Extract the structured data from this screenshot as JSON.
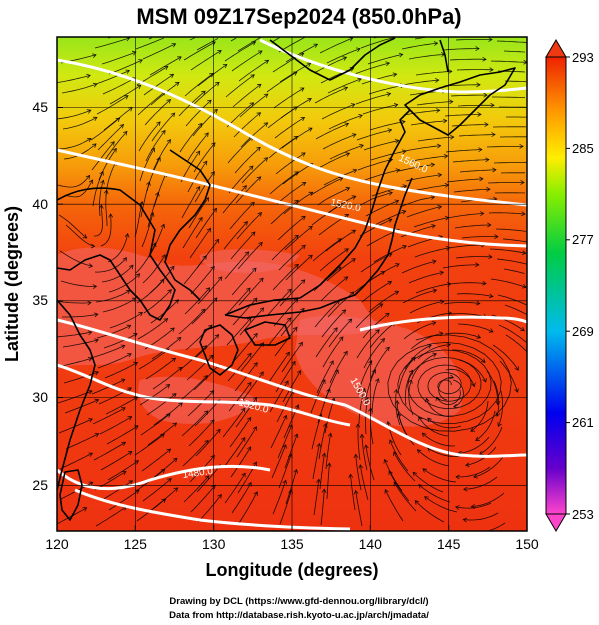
{
  "title": "MSM 09Z17Sep2024 (850.0hPa)",
  "map": {
    "xlabel": "Longitude (degrees)",
    "ylabel": "Latitude  (degrees)",
    "xlim": [
      120,
      150
    ],
    "ylim": [
      22.4,
      47.6
    ],
    "x_ticks": [
      "120",
      "125",
      "130",
      "135",
      "140",
      "145",
      "150"
    ],
    "y_ticks": [
      "25",
      "30",
      "35",
      "40",
      "45"
    ],
    "grid": true
  },
  "colorbar": {
    "range": [
      253,
      293
    ],
    "ticks": [
      "293",
      "285",
      "277",
      "269",
      "261",
      "253"
    ],
    "colors": [
      "#ff44cc",
      "#6600cc",
      "#0000ee",
      "#00bbee",
      "#00cc44",
      "#88ee00",
      "#ffee00",
      "#ff9900",
      "#ff3300",
      "#ee1100"
    ]
  },
  "contour_labels": [
    "1560.0",
    "1520.0",
    "1500.0",
    "1520.0",
    "1480.0"
  ],
  "credits": {
    "line1": "Drawing by DCL (https://www.gfd-dennou.org/library/dcl/)",
    "line2": "Data from http://database.rish.kyoto-u.ac.jp/arch/jmadata/"
  }
}
